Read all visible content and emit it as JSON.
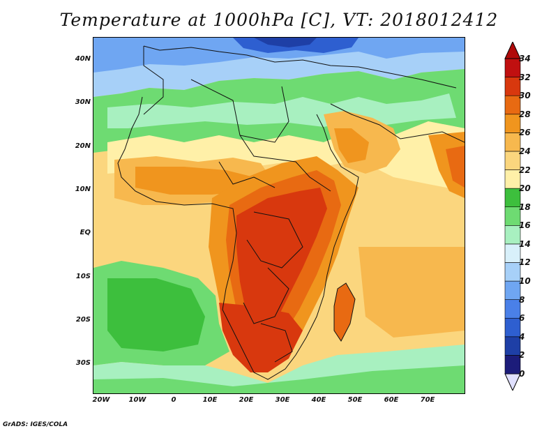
{
  "title": "Temperature at 1000hPa [C], VT: 2018012412",
  "footer": "GrADS: IGES/COLA",
  "map": {
    "lon_range": [
      -22,
      80
    ],
    "lat_range": [
      -36,
      44
    ],
    "lat_ticks": [
      "40N",
      "30N",
      "20N",
      "10N",
      "EQ",
      "10S",
      "20S",
      "30S"
    ],
    "lon_ticks": [
      "20W",
      "10W",
      "0",
      "10E",
      "20E",
      "30E",
      "40E",
      "50E",
      "60E",
      "70E"
    ]
  },
  "colorbar": {
    "levels": [
      "0",
      "2",
      "4",
      "6",
      "8",
      "10",
      "12",
      "14",
      "16",
      "18",
      "20",
      "22",
      "24",
      "26",
      "28",
      "30",
      "32",
      "34"
    ],
    "colors": [
      "#e0e0ff",
      "#1c1c7a",
      "#1e3fa6",
      "#2e5fd0",
      "#4a80e8",
      "#6fa6f2",
      "#a7d0f8",
      "#d8f0fa",
      "#a8f0c0",
      "#6edb72",
      "#3dbf3d",
      "#fff0a8",
      "#fbd67e",
      "#f7b84e",
      "#f0951e",
      "#e86a12",
      "#d8380e",
      "#c01010",
      "#b00a0a"
    ]
  }
}
